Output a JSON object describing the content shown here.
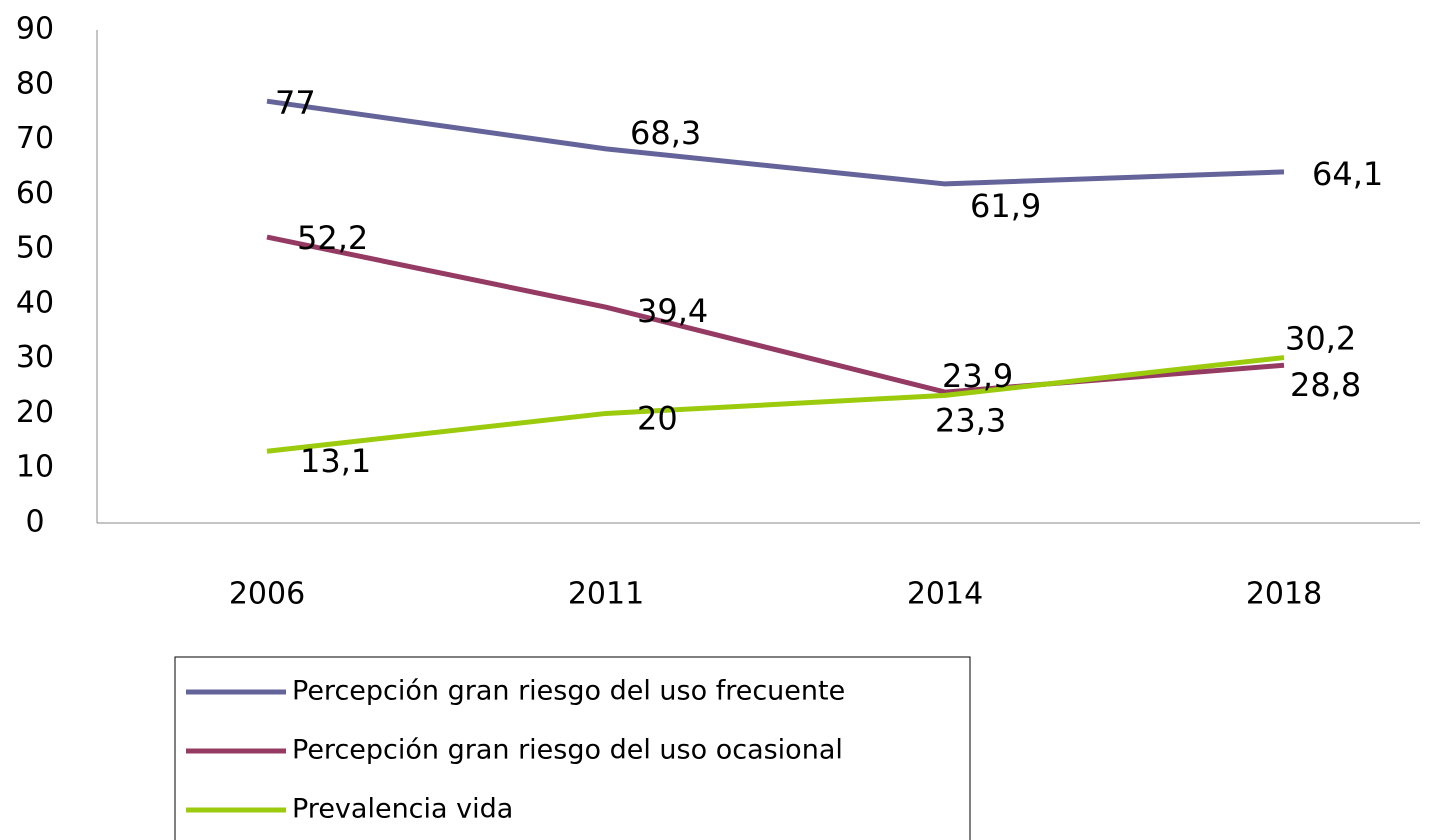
{
  "chart_data": {
    "type": "line",
    "categories": [
      "2006",
      "2011",
      "2014",
      "2018"
    ],
    "series": [
      {
        "name": "Percepción gran riesgo del uso frecuente",
        "color": "#65649a",
        "values": [
          77,
          68.3,
          61.9,
          64.1
        ],
        "value_labels": [
          "77",
          "68,3",
          "61,9",
          "64,1"
        ]
      },
      {
        "name": "Percepción gran riesgo del uso ocasional",
        "color": "#953b63",
        "values": [
          52.2,
          39.4,
          23.9,
          28.8
        ],
        "value_labels": [
          "52,2",
          "39,4",
          "23,9",
          "28,8"
        ]
      },
      {
        "name": "Prevalencia vida",
        "color": "#9bcb0c",
        "values": [
          13.1,
          20,
          23.3,
          30.2
        ],
        "value_labels": [
          "13,1",
          "20",
          "23,3",
          "30,2"
        ]
      }
    ],
    "ylim": [
      0,
      90
    ],
    "yticks": [
      0,
      10,
      20,
      30,
      40,
      50,
      60,
      70,
      80,
      90
    ],
    "grid": false
  }
}
